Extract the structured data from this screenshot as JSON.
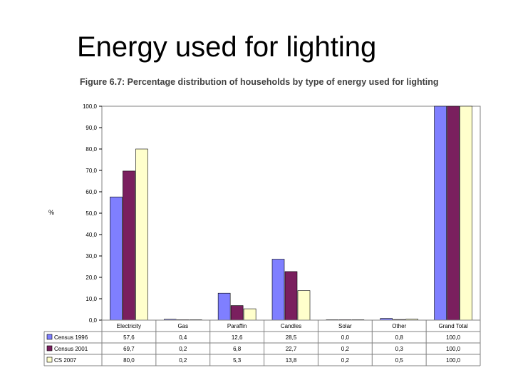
{
  "slide_title": "Energy used for lighting",
  "chart_data": {
    "type": "bar",
    "title": "Figure 6.7: Percentage distribution of households by type of energy used for lighting",
    "xlabel": "",
    "ylabel": "%",
    "ylim": [
      0,
      100
    ],
    "yticks": [
      "0,0",
      "10,0",
      "20,0",
      "30,0",
      "40,0",
      "50,0",
      "60,0",
      "70,0",
      "80,0",
      "90,0",
      "100,0"
    ],
    "grid": false,
    "legend": "table-below",
    "categories": [
      "Electricity",
      "Gas",
      "Paraffin",
      "Candles",
      "Solar",
      "Other",
      "Grand Total"
    ],
    "series": [
      {
        "name": "Census 1996",
        "color": "#7f7fff",
        "values": [
          57.6,
          0.4,
          12.6,
          28.5,
          0.0,
          0.8,
          100.0
        ],
        "labels": [
          "57,6",
          "0,4",
          "12,6",
          "28,5",
          "0,0",
          "0,8",
          "100,0"
        ]
      },
      {
        "name": "Census 2001",
        "color": "#7a1f5e",
        "values": [
          69.7,
          0.2,
          6.8,
          22.7,
          0.2,
          0.3,
          100.0
        ],
        "labels": [
          "69,7",
          "0,2",
          "6,8",
          "22,7",
          "0,2",
          "0,3",
          "100,0"
        ]
      },
      {
        "name": "CS 2007",
        "color": "#ffffcc",
        "values": [
          80.0,
          0.2,
          5.3,
          13.8,
          0.2,
          0.5,
          100.0
        ],
        "labels": [
          "80,0",
          "0,2",
          "5,3",
          "13,8",
          "0,2",
          "0,5",
          "100,0"
        ]
      }
    ]
  }
}
